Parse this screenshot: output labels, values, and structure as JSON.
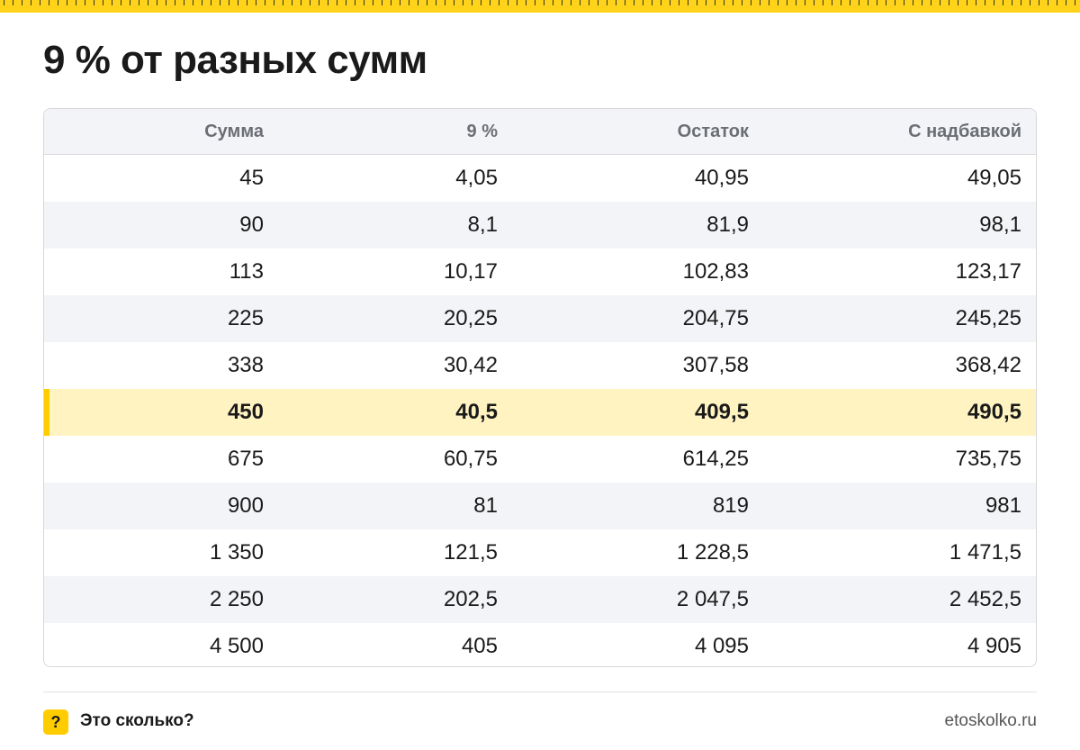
{
  "title": "9 % от разных сумм",
  "table": {
    "header": [
      "Сумма",
      "9 %",
      "Остаток",
      "С надбавкой"
    ],
    "rows": [
      [
        "45",
        "4,05",
        "40,95",
        "49,05"
      ],
      [
        "90",
        "8,1",
        "81,9",
        "98,1"
      ],
      [
        "113",
        "10,17",
        "102,83",
        "123,17"
      ],
      [
        "225",
        "20,25",
        "204,75",
        "245,25"
      ],
      [
        "338",
        "30,42",
        "307,58",
        "368,42"
      ],
      [
        "450",
        "40,5",
        "409,5",
        "490,5"
      ],
      [
        "675",
        "60,75",
        "614,25",
        "735,75"
      ],
      [
        "900",
        "81",
        "819",
        "981"
      ],
      [
        "1 350",
        "121,5",
        "1 228,5",
        "1 471,5"
      ],
      [
        "2 250",
        "202,5",
        "2 047,5",
        "2 452,5"
      ],
      [
        "4 500",
        "405",
        "4 095",
        "4 905"
      ]
    ],
    "highlighted_row": 5
  },
  "footer": {
    "badge": "?",
    "brand": "Это сколько?",
    "site": "etoskolko.ru"
  }
}
